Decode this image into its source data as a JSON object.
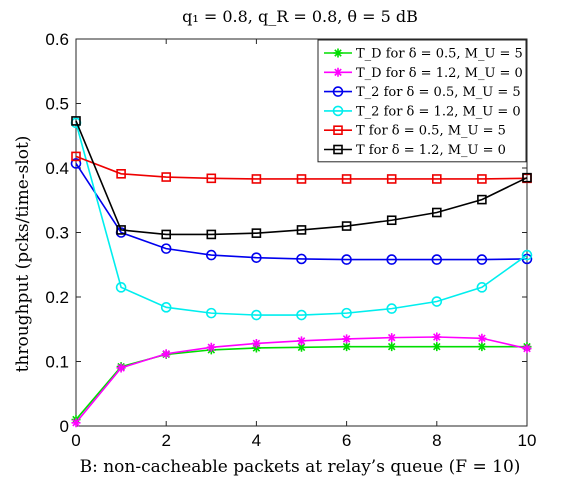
{
  "chart_data": {
    "type": "line",
    "title": "q₁ = 0.8, q_R = 0.8, θ = 5 dB",
    "xlabel": "B: non-cacheable packets at relay’s queue (F = 10)",
    "ylabel": "throughput (pcks/time-slot)",
    "x": [
      0,
      1,
      2,
      3,
      4,
      5,
      6,
      7,
      8,
      9,
      10
    ],
    "xlim": [
      0,
      10
    ],
    "ylim": [
      0,
      0.6
    ],
    "xticks": [
      0,
      2,
      4,
      6,
      8,
      10
    ],
    "yticks": [
      0,
      0.1,
      0.2,
      0.3,
      0.4,
      0.5,
      0.6
    ],
    "xtick_labels": [
      "0",
      "2",
      "4",
      "6",
      "8",
      "10"
    ],
    "ytick_labels": [
      "0",
      "0.1",
      "0.2",
      "0.3",
      "0.4",
      "0.5",
      "0.6"
    ],
    "grid": false,
    "legend_position": "top-right",
    "series": [
      {
        "name": "T_D for δ = 0.5, M_U = 5",
        "color": "#00dd00",
        "marker": "asterisk",
        "values": [
          0.01,
          0.092,
          0.111,
          0.118,
          0.121,
          0.122,
          0.123,
          0.123,
          0.123,
          0.123,
          0.123
        ]
      },
      {
        "name": "T_D for δ = 1.2, M_U = 0",
        "color": "#ff00ff",
        "marker": "asterisk",
        "values": [
          0.005,
          0.09,
          0.112,
          0.122,
          0.128,
          0.132,
          0.135,
          0.137,
          0.138,
          0.136,
          0.12
        ]
      },
      {
        "name": "T_2 for δ = 0.5, M_U = 5",
        "color": "#0000ee",
        "marker": "circle",
        "values": [
          0.407,
          0.3,
          0.275,
          0.265,
          0.261,
          0.259,
          0.258,
          0.258,
          0.258,
          0.258,
          0.259
        ]
      },
      {
        "name": "T_2 for δ = 1.2, M_U = 0",
        "color": "#00eeee",
        "marker": "circle",
        "values": [
          0.47,
          0.215,
          0.184,
          0.175,
          0.172,
          0.172,
          0.175,
          0.182,
          0.193,
          0.215,
          0.265
        ]
      },
      {
        "name": "T for δ = 0.5, M_U = 5",
        "color": "#ee0000",
        "marker": "square",
        "values": [
          0.418,
          0.391,
          0.386,
          0.384,
          0.383,
          0.383,
          0.383,
          0.383,
          0.383,
          0.383,
          0.384
        ]
      },
      {
        "name": "T for δ = 1.2, M_U = 0",
        "color": "#000000",
        "marker": "square",
        "values": [
          0.473,
          0.304,
          0.297,
          0.297,
          0.299,
          0.304,
          0.31,
          0.319,
          0.331,
          0.351,
          0.385
        ]
      }
    ]
  }
}
